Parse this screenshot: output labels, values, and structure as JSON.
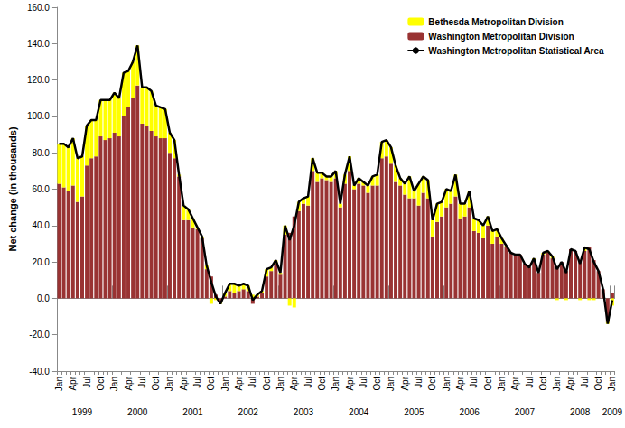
{
  "chart_data": {
    "type": "bar",
    "y_label": "Net change (in thousands)",
    "categories": [
      "Jan",
      null,
      null,
      "Apr",
      null,
      null,
      "Jul",
      null,
      null,
      "Oct",
      null,
      null,
      "Jan",
      null,
      null,
      "Apr",
      null,
      null,
      "Jul",
      null,
      null,
      "Oct",
      null,
      null,
      "Jan",
      null,
      null,
      "Apr",
      null,
      null,
      "Jul",
      null,
      null,
      "Oct",
      null,
      null,
      "Jan",
      null,
      null,
      "Apr",
      null,
      null,
      "Jul",
      null,
      null,
      "Oct",
      null,
      null,
      "Jan",
      null,
      null,
      "Apr",
      null,
      null,
      "Jul",
      null,
      null,
      "Oct",
      null,
      null,
      "Jan",
      null,
      null,
      "Apr",
      null,
      null,
      "Jul",
      null,
      null,
      "Oct",
      null,
      null,
      "Jan",
      null,
      null,
      "Apr",
      null,
      null,
      "Jul",
      null,
      null,
      "Oct",
      null,
      null,
      "Jan",
      null,
      null,
      "Apr",
      null,
      null,
      "Jul",
      null,
      null,
      "Oct",
      null,
      null,
      "Jan",
      null,
      null,
      "Apr",
      null,
      null,
      "Jul",
      null,
      null,
      "Oct",
      null,
      null,
      "Jan",
      null,
      null,
      "Apr",
      null,
      null,
      "Jul",
      null,
      null,
      "Oct",
      null,
      null,
      "Jan"
    ],
    "years": [
      "1999",
      "2000",
      "2001",
      "2002",
      "2003",
      "2004",
      "2005",
      "2006",
      "2007",
      "2008",
      "2009"
    ],
    "series": [
      {
        "name": "Bethesda Metropolitan Division",
        "type": "bar",
        "color": "#ffff00",
        "values": [
          22,
          24,
          24,
          26,
          24,
          22,
          22,
          21,
          20,
          20,
          22,
          21,
          22,
          21,
          24,
          20,
          20,
          22,
          20,
          21,
          22,
          17,
          17,
          16,
          11,
          10,
          1,
          8,
          6,
          5,
          1,
          1,
          2,
          -3,
          -1,
          -1,
          2,
          4,
          5,
          3,
          3,
          3,
          2,
          1,
          1,
          4,
          2,
          2,
          1,
          5,
          -4,
          -5,
          5,
          3,
          5,
          7,
          5,
          3,
          2,
          3,
          4,
          2,
          5,
          8,
          2,
          3,
          2,
          4,
          5,
          6,
          9,
          9,
          9,
          9,
          4,
          6,
          12,
          4,
          12,
          9,
          10,
          9,
          10,
          8,
          10,
          7,
          12,
          8,
          7,
          9,
          7,
          7,
          7,
          5,
          7,
          4,
          3,
          1,
          0,
          0,
          0,
          0,
          0,
          1,
          0,
          1,
          1,
          1,
          -1,
          0,
          -1,
          0,
          0,
          -1,
          2,
          -1,
          -1,
          0,
          0,
          -1,
          -4
        ]
      },
      {
        "name": "Washington Metropolitan Division",
        "type": "bar",
        "color": "#993333",
        "values": [
          63,
          61,
          59,
          62,
          53,
          56,
          73,
          77,
          78,
          89,
          87,
          88,
          91,
          89,
          100,
          105,
          110,
          117,
          96,
          95,
          92,
          89,
          88,
          88,
          80,
          77,
          67,
          43,
          43,
          39,
          38,
          33,
          16,
          12,
          2,
          -2,
          1,
          4,
          3,
          4,
          5,
          4,
          -3,
          1,
          3,
          12,
          15,
          19,
          13,
          35,
          36,
          45,
          48,
          52,
          51,
          70,
          64,
          66,
          65,
          64,
          66,
          50,
          63,
          70,
          60,
          63,
          62,
          58,
          62,
          62,
          77,
          78,
          74,
          64,
          62,
          57,
          55,
          55,
          51,
          58,
          55,
          34,
          42,
          45,
          50,
          52,
          56,
          44,
          45,
          50,
          37,
          36,
          33,
          40,
          30,
          34,
          30,
          28,
          25,
          24,
          24,
          19,
          17,
          21,
          14,
          24,
          25,
          22,
          17,
          20,
          15,
          27,
          26,
          20,
          26,
          28,
          21,
          15,
          5,
          -13,
          3
        ]
      },
      {
        "name": "Washington Metropolitan Statistical Area",
        "type": "line",
        "color": "#000000",
        "values": [
          85,
          85,
          83,
          88,
          77,
          78,
          95,
          98,
          98,
          109,
          109,
          109,
          113,
          110,
          124,
          125,
          130,
          139,
          116,
          116,
          114,
          106,
          105,
          104,
          91,
          87,
          68,
          51,
          49,
          44,
          39,
          34,
          18,
          9,
          1,
          -3,
          3,
          8,
          8,
          7,
          8,
          7,
          -1,
          2,
          4,
          16,
          17,
          21,
          14,
          40,
          32,
          40,
          53,
          55,
          56,
          77,
          69,
          69,
          67,
          67,
          70,
          52,
          68,
          78,
          62,
          66,
          64,
          62,
          67,
          68,
          86,
          87,
          83,
          73,
          66,
          63,
          67,
          59,
          63,
          67,
          65,
          43,
          52,
          53,
          60,
          59,
          68,
          52,
          52,
          59,
          44,
          43,
          40,
          45,
          37,
          38,
          33,
          29,
          25,
          24,
          24,
          19,
          17,
          22,
          14,
          25,
          26,
          23,
          16,
          20,
          14,
          27,
          26,
          19,
          28,
          27,
          20,
          15,
          5,
          -14,
          -1
        ]
      }
    ],
    "stacked": true,
    "ylim": [
      -40,
      160
    ],
    "yticks": [
      {
        "value": -40,
        "label": "-40.0"
      },
      {
        "value": -20,
        "label": "-20.0"
      },
      {
        "value": 0,
        "label": "0.0"
      },
      {
        "value": 20,
        "label": "20.0"
      },
      {
        "value": 40,
        "label": "40.0"
      },
      {
        "value": 60,
        "label": "60.0"
      },
      {
        "value": 80,
        "label": "80.0"
      },
      {
        "value": 100,
        "label": "100.0"
      },
      {
        "value": 120,
        "label": "120.0"
      },
      {
        "value": 140,
        "label": "140.0"
      },
      {
        "value": 160,
        "label": "160.0"
      }
    ],
    "grid": false,
    "legend": "top right"
  }
}
